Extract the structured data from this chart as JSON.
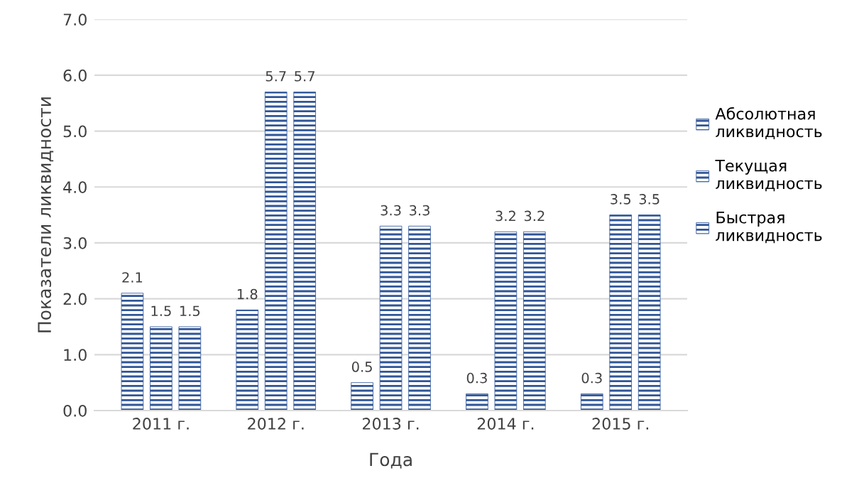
{
  "chart_data": {
    "type": "bar",
    "xlabel": "Года",
    "ylabel": "Показатели ликвидности",
    "categories": [
      "2011 г.",
      "2012 г.",
      "2013 г.",
      "2014 г.",
      "2015 г."
    ],
    "series": [
      {
        "name": "Абсолютная ликвидность",
        "color": "#2f5597",
        "values": [
          2.1,
          1.8,
          0.5,
          0.3,
          0.3
        ]
      },
      {
        "name": "Текущая ликвидность",
        "color": "#2f5597",
        "values": [
          1.5,
          5.7,
          3.3,
          3.2,
          3.5
        ]
      },
      {
        "name": "Быстрая ликвидность",
        "color": "#2f5597",
        "values": [
          1.5,
          5.7,
          3.3,
          3.2,
          3.5
        ]
      }
    ],
    "ylim": [
      0,
      7
    ],
    "yticks": [
      {
        "value": 0,
        "label": "0.0"
      },
      {
        "value": 1,
        "label": "1.0"
      },
      {
        "value": 2,
        "label": "2.0"
      },
      {
        "value": 3,
        "label": "3.0"
      },
      {
        "value": 4,
        "label": "4.0"
      },
      {
        "value": 5,
        "label": "5.0"
      },
      {
        "value": 6,
        "label": "6.0"
      },
      {
        "value": 7,
        "label": "7.0"
      }
    ],
    "grid": "y",
    "legend": "right",
    "data_labels": true
  }
}
